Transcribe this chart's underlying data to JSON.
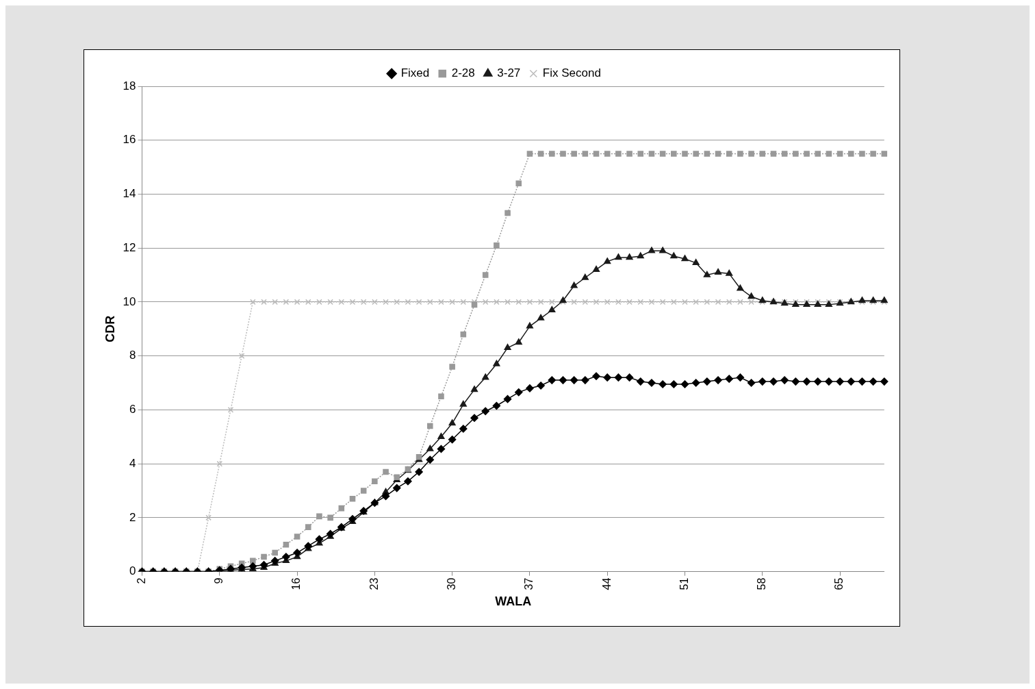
{
  "chart_data": {
    "type": "line",
    "xlabel": "WALA",
    "ylabel": "CDR",
    "categories": [
      "2",
      null,
      null,
      null,
      null,
      null,
      null,
      "9",
      null,
      null,
      null,
      null,
      null,
      null,
      "16",
      null,
      null,
      null,
      null,
      null,
      null,
      "23",
      null,
      null,
      null,
      null,
      null,
      null,
      "30",
      null,
      null,
      null,
      null,
      null,
      null,
      "37",
      null,
      null,
      null,
      null,
      null,
      null,
      "44",
      null,
      null,
      null,
      null,
      null,
      null,
      "51",
      null,
      null,
      null,
      null,
      null,
      null,
      "58",
      null,
      null,
      null,
      null,
      null,
      null,
      "65",
      null,
      null,
      null,
      null
    ],
    "ylim": [
      0,
      18
    ],
    "yticks": [
      0,
      2,
      4,
      6,
      8,
      10,
      12,
      14,
      16,
      18
    ],
    "grid": "y",
    "legend": "top",
    "series": [
      {
        "name": "Fixed",
        "color": "#000000",
        "marker": "diamond",
        "line_style": "solid",
        "values": [
          0,
          0,
          0,
          0,
          0,
          0,
          0,
          0.05,
          0.1,
          0.15,
          0.2,
          0.25,
          0.4,
          0.55,
          0.7,
          0.95,
          1.2,
          1.4,
          1.65,
          1.95,
          2.25,
          2.55,
          2.8,
          3.1,
          3.35,
          3.7,
          4.15,
          4.55,
          4.9,
          5.3,
          5.7,
          5.95,
          6.15,
          6.4,
          6.65,
          6.8,
          6.9,
          7.1,
          7.1,
          7.1,
          7.1,
          7.25,
          7.2,
          7.2,
          7.2,
          7.05,
          7.0,
          6.95,
          6.95,
          6.95,
          7.0,
          7.05,
          7.1,
          7.15,
          7.2,
          7.0,
          7.05,
          7.05,
          7.1,
          7.05,
          7.05,
          7.05,
          7.05,
          7.05,
          7.05,
          7.05,
          7.05,
          7.05
        ]
      },
      {
        "name": "2-28",
        "color": "#999999",
        "marker": "square",
        "line_style": "dotted",
        "values": [
          0,
          0,
          0,
          0,
          0,
          0,
          0,
          0.1,
          0.2,
          0.3,
          0.4,
          0.55,
          0.7,
          1.0,
          1.3,
          1.65,
          2.05,
          2.0,
          2.35,
          2.7,
          3.0,
          3.35,
          3.7,
          3.5,
          3.8,
          4.25,
          5.4,
          6.5,
          7.6,
          8.8,
          9.9,
          11.0,
          12.1,
          13.3,
          14.4,
          15.5,
          15.5,
          15.5,
          15.5,
          15.5,
          15.5,
          15.5,
          15.5,
          15.5,
          15.5,
          15.5,
          15.5,
          15.5,
          15.5,
          15.5,
          15.5,
          15.5,
          15.5,
          15.5,
          15.5,
          15.5,
          15.5,
          15.5,
          15.5,
          15.5,
          15.5,
          15.5,
          15.5,
          15.5,
          15.5,
          15.5,
          15.5,
          15.5
        ]
      },
      {
        "name": "3-27",
        "color": "#1a1a1a",
        "marker": "triangle",
        "line_style": "solid",
        "values": [
          0,
          0,
          0,
          0,
          0,
          0,
          0,
          0,
          0.05,
          0.08,
          0.1,
          0.15,
          0.3,
          0.4,
          0.55,
          0.85,
          1.05,
          1.3,
          1.6,
          1.85,
          2.2,
          2.55,
          2.95,
          3.4,
          3.75,
          4.15,
          4.55,
          5.0,
          5.5,
          6.2,
          6.75,
          7.2,
          7.7,
          8.3,
          8.5,
          9.1,
          9.4,
          9.7,
          10.05,
          10.6,
          10.9,
          11.2,
          11.5,
          11.65,
          11.65,
          11.7,
          11.9,
          11.9,
          11.7,
          11.6,
          11.45,
          11.0,
          11.1,
          11.05,
          10.5,
          10.2,
          10.05,
          10.0,
          9.95,
          9.9,
          9.9,
          9.9,
          9.9,
          9.95,
          10.0,
          10.05,
          10.05,
          10.05
        ]
      },
      {
        "name": "Fix Second",
        "color": "#bbbbbb",
        "marker": "cross",
        "line_style": "dotted",
        "values": [
          0,
          0,
          0,
          0,
          0,
          0,
          2,
          4,
          6,
          8,
          10,
          10,
          10,
          10,
          10,
          10,
          10,
          10,
          10,
          10,
          10,
          10,
          10,
          10,
          10,
          10,
          10,
          10,
          10,
          10,
          10,
          10,
          10,
          10,
          10,
          10,
          10,
          10,
          10,
          10,
          10,
          10,
          10,
          10,
          10,
          10,
          10,
          10,
          10,
          10,
          10,
          10,
          10,
          10,
          10,
          10,
          10,
          10,
          10,
          10,
          10,
          10,
          10,
          10,
          10,
          10,
          10,
          10
        ]
      }
    ]
  }
}
